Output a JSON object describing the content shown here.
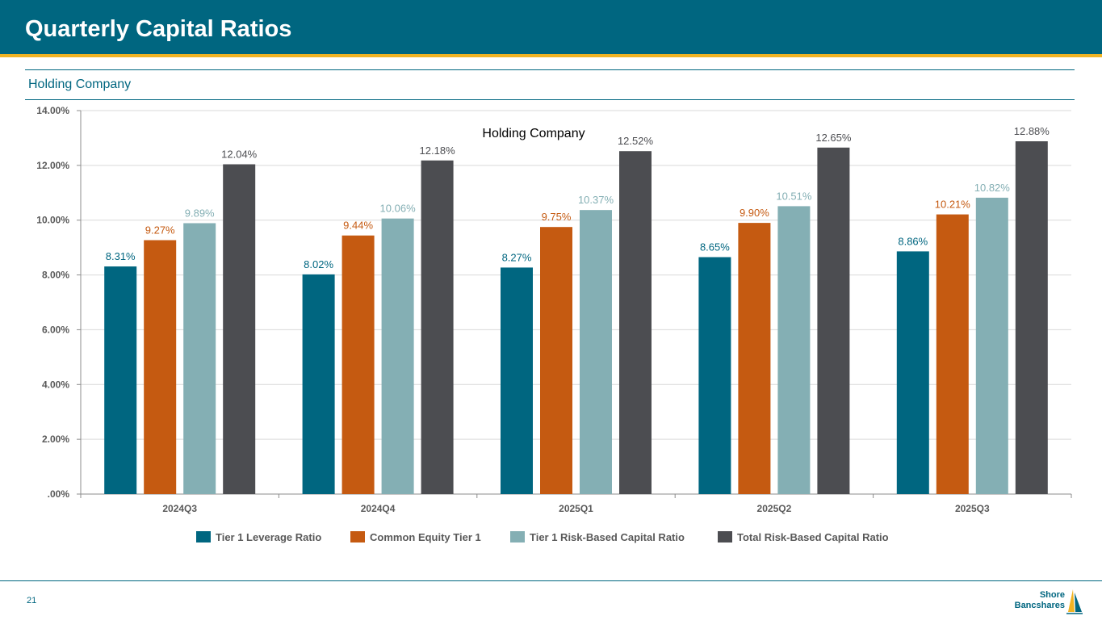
{
  "header": {
    "title": "Quarterly Capital Ratios"
  },
  "section": {
    "subtitle": "Holding Company"
  },
  "footer": {
    "page_number": "21",
    "logo_line1": "Shore",
    "logo_line2": "Bancshares"
  },
  "colors": {
    "header_bg": "#006680",
    "accent": "#f0b323",
    "series": [
      "#006680",
      "#c55a11",
      "#84afb4",
      "#4c4d51"
    ],
    "label_colors": [
      "#006680",
      "#c55a11",
      "#84afb4",
      "#4c4d51"
    ]
  },
  "chart_data": {
    "type": "bar",
    "title": "Holding Company",
    "categories": [
      "2024Q3",
      "2024Q4",
      "2025Q1",
      "2025Q2",
      "2025Q3"
    ],
    "series": [
      {
        "name": "Tier 1 Leverage Ratio",
        "values": [
          8.31,
          8.02,
          8.27,
          8.65,
          8.86
        ],
        "labels": [
          "8.31%",
          "8.02%",
          "8.27%",
          "8.65%",
          "8.86%"
        ]
      },
      {
        "name": "Common Equity Tier 1",
        "values": [
          9.27,
          9.44,
          9.75,
          9.9,
          10.21
        ],
        "labels": [
          "9.27%",
          "9.44%",
          "9.75%",
          "9.90%",
          "10.21%"
        ]
      },
      {
        "name": "Tier 1 Risk-Based Capital Ratio",
        "values": [
          9.89,
          10.06,
          10.37,
          10.51,
          10.82
        ],
        "labels": [
          "9.89%",
          "10.06%",
          "10.37%",
          "10.51%",
          "10.82%"
        ]
      },
      {
        "name": "Total Risk-Based Capital Ratio",
        "values": [
          12.04,
          12.18,
          12.52,
          12.65,
          12.88
        ],
        "labels": [
          "12.04%",
          "12.18%",
          "12.52%",
          "12.65%",
          "12.88%"
        ]
      }
    ],
    "ylim": [
      0,
      14
    ],
    "yticks": [
      ".00%",
      "2.00%",
      "4.00%",
      "6.00%",
      "8.00%",
      "10.00%",
      "12.00%",
      "14.00%"
    ],
    "xlabel": "",
    "ylabel": "",
    "grid": true,
    "legend_position": "bottom"
  }
}
